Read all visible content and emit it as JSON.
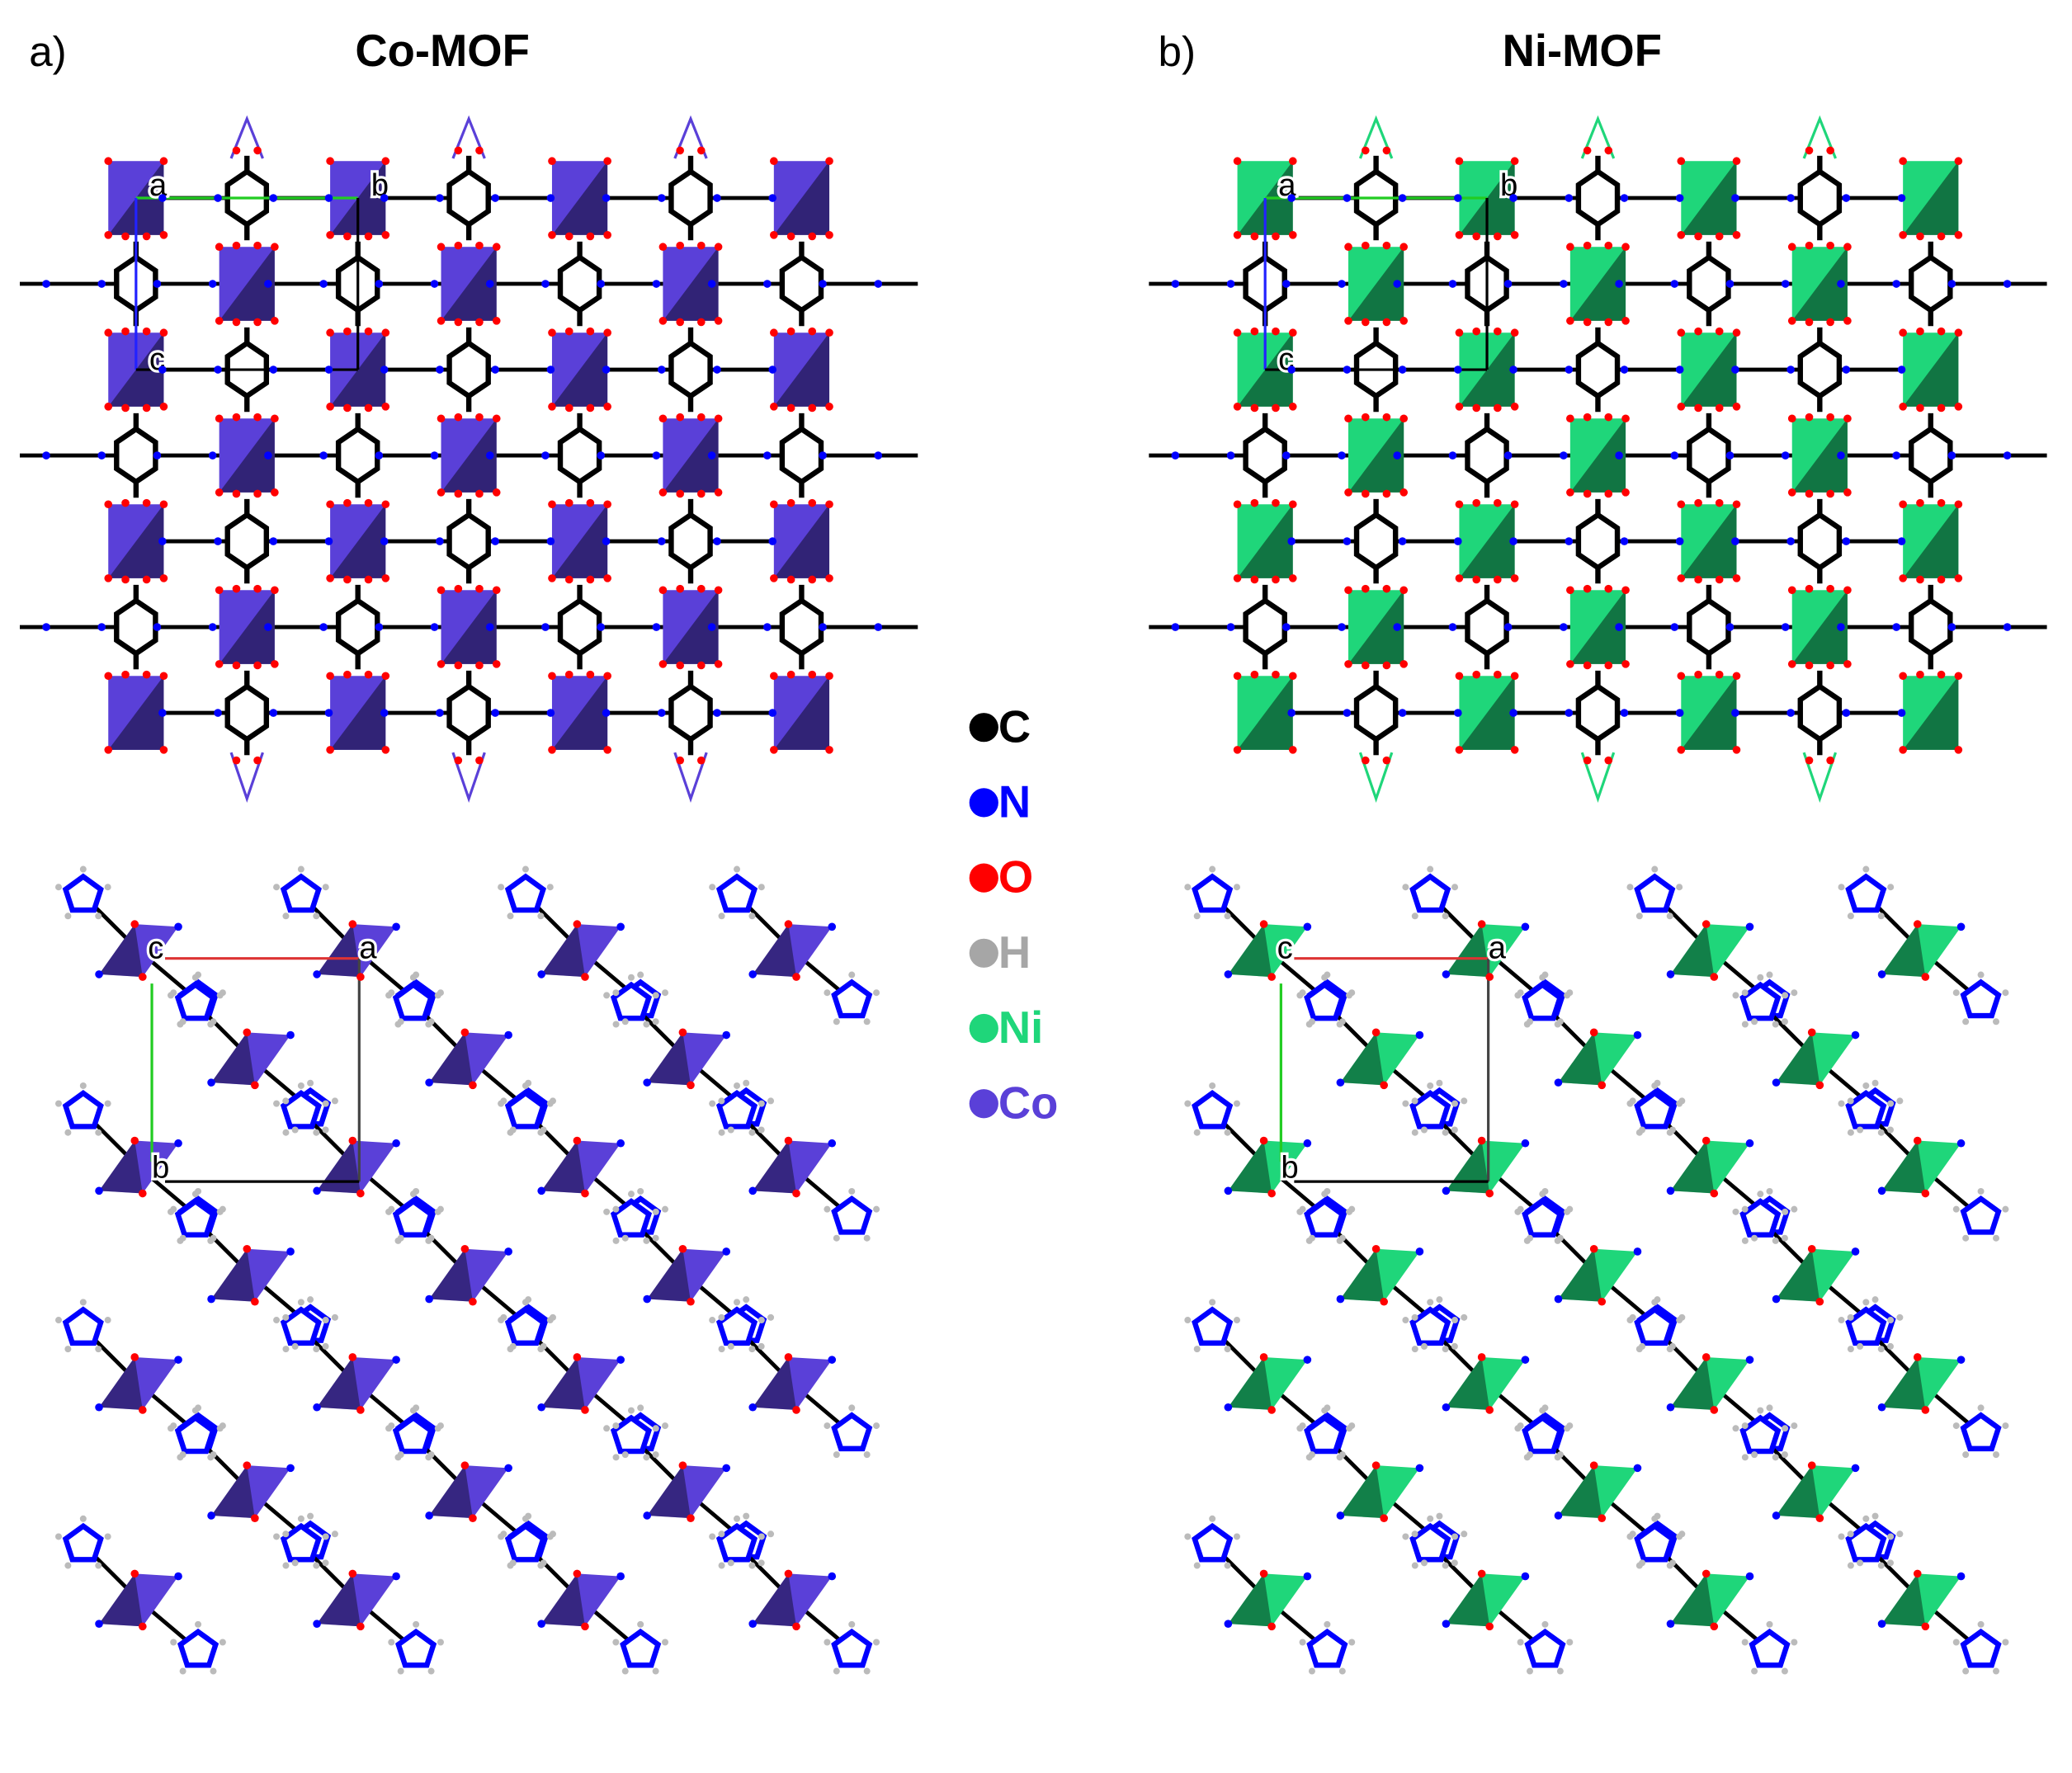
{
  "panels": [
    {
      "label": "a)",
      "title": "Co-MOF",
      "color": "#5a40d8",
      "cell_top": [
        "a",
        "b",
        "c"
      ],
      "cell_bottom": [
        "c",
        "a",
        "b"
      ]
    },
    {
      "label": "b)",
      "title": "Ni-MOF",
      "color": "#1fd67a",
      "cell_top": [
        "a",
        "b",
        "c"
      ],
      "cell_bottom": [
        "c",
        "a",
        "b"
      ]
    }
  ],
  "legend": [
    {
      "symbol": "C",
      "color": "#000000"
    },
    {
      "symbol": "N",
      "color": "#0000ff"
    },
    {
      "symbol": "O",
      "color": "#ff0000"
    },
    {
      "symbol": "H",
      "color": "#a6a6a6"
    },
    {
      "symbol": "Ni",
      "color": "#1fd67a"
    },
    {
      "symbol": "Co",
      "color": "#5a40d8"
    }
  ]
}
